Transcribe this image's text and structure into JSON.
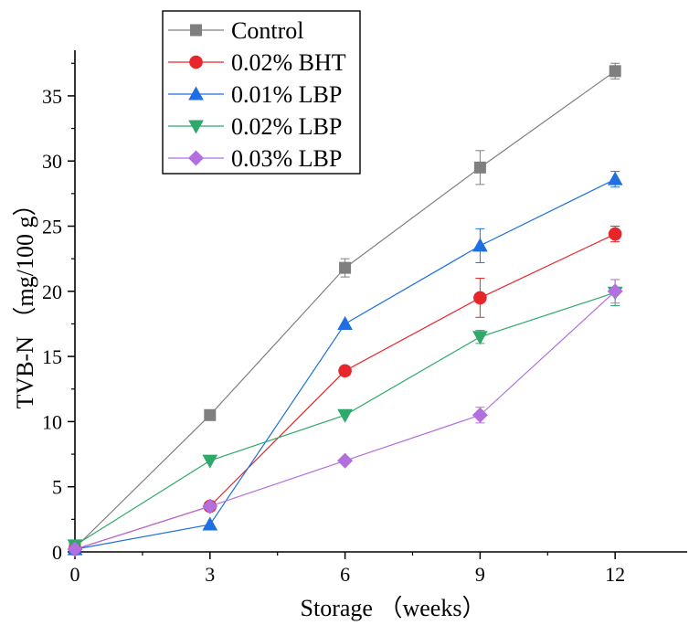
{
  "chart_data": {
    "type": "line",
    "xlabel": "Storage （weeks）",
    "ylabel": "TVB-N （mg/100 g）",
    "x": [
      0,
      3,
      6,
      9,
      12
    ],
    "xticks": [
      0,
      3,
      6,
      9,
      12
    ],
    "xlim": [
      0,
      13.6
    ],
    "yticks": [
      0,
      5,
      10,
      15,
      20,
      25,
      30,
      35
    ],
    "ylim": [
      0,
      38.5
    ],
    "grid": false,
    "legend_position": "top-left",
    "series": [
      {
        "name": "Control",
        "color": "#7f7f7f",
        "marker": "square",
        "values": [
          0.3,
          10.5,
          21.8,
          29.5,
          36.9
        ],
        "errors": [
          0.1,
          0.2,
          0.7,
          1.3,
          0.6
        ]
      },
      {
        "name": "0.02% BHT",
        "color": "#e8262a",
        "marker": "circle",
        "values": [
          0.2,
          3.5,
          13.9,
          19.5,
          24.4
        ],
        "errors": [
          0.1,
          0.2,
          0.3,
          1.5,
          0.6
        ]
      },
      {
        "name": "0.01% LBP",
        "color": "#1f6fe0",
        "marker": "triangle-up",
        "values": [
          0.2,
          2.1,
          17.5,
          23.5,
          28.6
        ],
        "errors": [
          0.1,
          0.2,
          0.2,
          1.3,
          0.6
        ]
      },
      {
        "name": "0.02% LBP",
        "color": "#2ea86b",
        "marker": "triangle-down",
        "values": [
          0.5,
          7.0,
          10.5,
          16.5,
          19.9
        ],
        "errors": [
          0.1,
          0.2,
          0.2,
          0.5,
          1.0
        ]
      },
      {
        "name": "0.03% LBP",
        "color": "#b26fe0",
        "marker": "diamond",
        "values": [
          0.2,
          3.5,
          7.0,
          10.5,
          20.0
        ],
        "errors": [
          0.1,
          0.2,
          0.2,
          0.6,
          0.9
        ]
      }
    ]
  }
}
